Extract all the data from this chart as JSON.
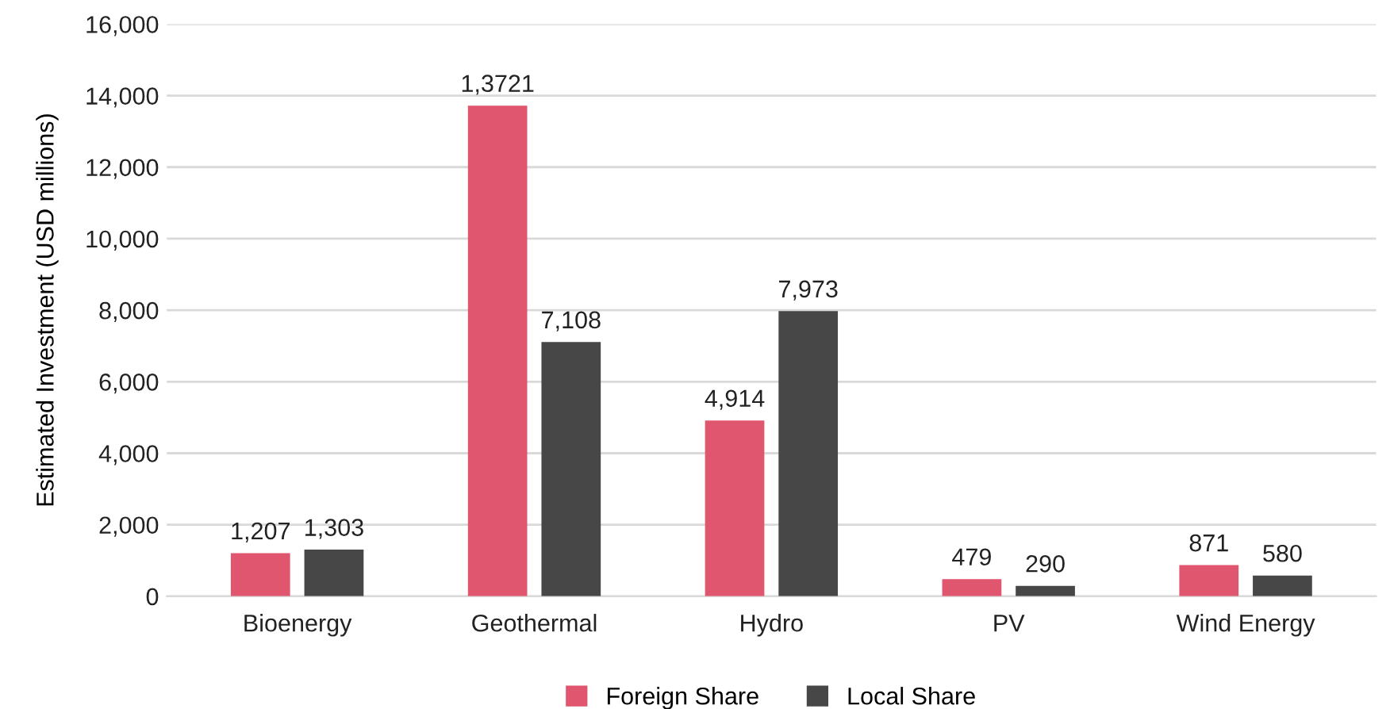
{
  "chart_data": {
    "type": "bar",
    "categories": [
      "Bioenergy",
      "Geothermal",
      "Hydro",
      "PV",
      "Wind Energy"
    ],
    "ylabel": "Estimated Investment (USD millions)",
    "series": [
      {
        "name": "Foreign Share",
        "color": "#e0566e",
        "values": [
          1207,
          13721,
          4914,
          479,
          871
        ],
        "value_labels": [
          "1,207",
          "1,3721",
          "4,914",
          "479",
          "871"
        ]
      },
      {
        "name": "Local Share",
        "color": "#474747",
        "values": [
          1303,
          7108,
          7973,
          290,
          580
        ],
        "value_labels": [
          "1,303",
          "7,108",
          "7,973",
          "290",
          "580"
        ]
      }
    ],
    "ylim": [
      0,
      16000
    ],
    "yticks": [
      {
        "value": 0,
        "label": "0"
      },
      {
        "value": 2000,
        "label": "2,000"
      },
      {
        "value": 4000,
        "label": "4,000"
      },
      {
        "value": 6000,
        "label": "6,000"
      },
      {
        "value": 8000,
        "label": "8,000"
      },
      {
        "value": 10000,
        "label": "10,000"
      },
      {
        "value": 12000,
        "label": "12,000"
      },
      {
        "value": 14000,
        "label": "14,000"
      },
      {
        "value": 16000,
        "label": "16,000"
      }
    ],
    "grid": "y",
    "legend": "bottom"
  }
}
